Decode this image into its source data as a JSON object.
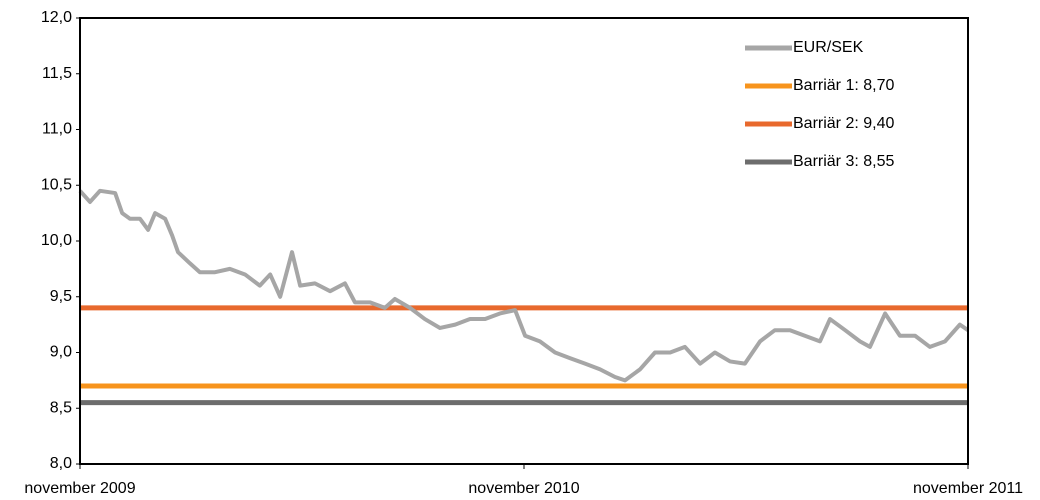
{
  "chart_data": {
    "type": "line",
    "ylim": [
      8.0,
      12.0
    ],
    "yticks": [
      {
        "value": 8.0,
        "label": "8,0"
      },
      {
        "value": 8.5,
        "label": "8,5"
      },
      {
        "value": 9.0,
        "label": "9,0"
      },
      {
        "value": 9.5,
        "label": "9,5"
      },
      {
        "value": 10.0,
        "label": "10,0"
      },
      {
        "value": 10.5,
        "label": "10,5"
      },
      {
        "value": 11.0,
        "label": "11,0"
      },
      {
        "value": 11.5,
        "label": "11,5"
      },
      {
        "value": 12.0,
        "label": "12,0"
      }
    ],
    "xlim": [
      0,
      24
    ],
    "xticks": [
      {
        "value": 0,
        "label": "november 2009"
      },
      {
        "value": 12,
        "label": "november 2010"
      },
      {
        "value": 24,
        "label": "november 2011"
      }
    ],
    "x": [
      0,
      0.27,
      0.54,
      0.95,
      1.14,
      1.35,
      1.62,
      1.84,
      2.03,
      2.3,
      2.49,
      2.65,
      2.97,
      3.24,
      3.65,
      4.05,
      4.46,
      4.86,
      5.14,
      5.41,
      5.73,
      5.95,
      6.35,
      6.76,
      7.16,
      7.43,
      7.84,
      8.24,
      8.51,
      8.92,
      9.32,
      9.73,
      10.14,
      10.54,
      10.95,
      11.35,
      11.76,
      12.03,
      12.43,
      12.84,
      13.24,
      13.65,
      14.05,
      14.46,
      14.73,
      15.14,
      15.54,
      15.95,
      16.35,
      16.76,
      17.16,
      17.57,
      17.97,
      18.38,
      18.78,
      19.19,
      19.59,
      20.0,
      20.27,
      20.68,
      21.08,
      21.35,
      21.76,
      22.16,
      22.57,
      22.97,
      23.38,
      23.78,
      24
    ],
    "series": [
      {
        "name": "EUR/SEK",
        "color": "#a6a6a6",
        "values": [
          10.45,
          10.35,
          10.45,
          10.43,
          10.25,
          10.2,
          10.2,
          10.1,
          10.25,
          10.2,
          10.05,
          9.9,
          9.8,
          9.72,
          9.72,
          9.75,
          9.7,
          9.6,
          9.7,
          9.5,
          9.9,
          9.6,
          9.62,
          9.55,
          9.62,
          9.45,
          9.45,
          9.4,
          9.48,
          9.4,
          9.3,
          9.22,
          9.25,
          9.3,
          9.3,
          9.35,
          9.38,
          9.15,
          9.1,
          9.0,
          8.95,
          8.9,
          8.85,
          8.78,
          8.75,
          8.85,
          9.0,
          9.0,
          9.05,
          8.9,
          9.0,
          8.92,
          8.9,
          9.1,
          9.2,
          9.2,
          9.15,
          9.1,
          9.3,
          9.2,
          9.1,
          9.05,
          9.35,
          9.15,
          9.15,
          9.05,
          9.1,
          9.25,
          9.2
        ]
      }
    ],
    "reference_lines": [
      {
        "name": "Barriär 1: 8,70",
        "value": 8.7,
        "color": "#f7941d"
      },
      {
        "name": "Barriär 2: 9,40",
        "value": 9.4,
        "color": "#e8692d"
      },
      {
        "name": "Barriär 3: 8,55",
        "value": 8.55,
        "color": "#6d6d6d"
      }
    ],
    "legend": "upper right"
  }
}
